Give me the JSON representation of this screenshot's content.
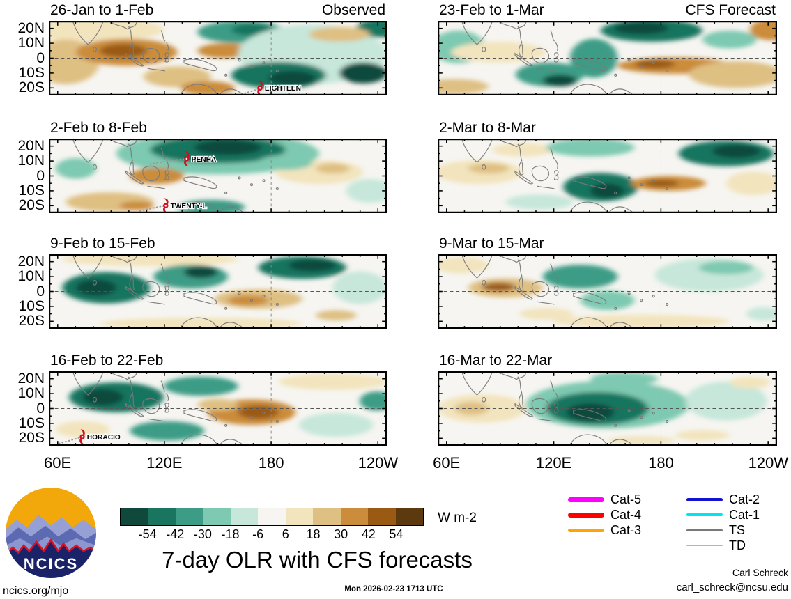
{
  "figure": {
    "title": "7-day OLR with CFS forecasts",
    "timestamp": "Mon 2026-02-23 1713 UTC",
    "credit_name": "Carl Schreck",
    "credit_email": "carl_schreck@ncsu.edu",
    "site": "ncics.org/mjo",
    "logo_text": "NCICS",
    "units_label": "W m-2"
  },
  "axes": {
    "lat_labels": [
      "20N",
      "10N",
      "0",
      "10S",
      "20S"
    ],
    "lat_fracs": [
      0.1,
      0.3,
      0.5,
      0.7,
      0.9
    ],
    "lon_labels": [
      "60E",
      "120E",
      "180",
      "120W"
    ],
    "lon_fracs": [
      0.026,
      0.342,
      0.658,
      0.974
    ]
  },
  "palette": {
    "m5": "#10493c",
    "m4": "#19755f",
    "m3": "#3d9c86",
    "m2": "#7ec9b1",
    "m1": "#c6e7da",
    "z": "#f6f5f1",
    "p1": "#f2e4bd",
    "p2": "#dfc083",
    "p3": "#cb8c3b",
    "p4": "#9a5a13",
    "p5": "#5d390f"
  },
  "colorbar": {
    "tick_values": [
      "-54",
      "-42",
      "-30",
      "-18",
      "-6",
      "6",
      "18",
      "30",
      "42",
      "54"
    ],
    "colors": [
      "#10493c",
      "#19755f",
      "#3d9c86",
      "#7ec9b1",
      "#c6e7da",
      "#f6f5f1",
      "#f2e4bd",
      "#dfc083",
      "#cb8c3b",
      "#9a5a13",
      "#5d390f"
    ]
  },
  "legend": {
    "col1": [
      {
        "label": "Cat-5",
        "color": "#ff00ff",
        "weight": 7
      },
      {
        "label": "Cat-4",
        "color": "#ff0000",
        "weight": 7
      },
      {
        "label": "Cat-3",
        "color": "#ffa500",
        "weight": 5
      }
    ],
    "col2": [
      {
        "label": "Cat-2",
        "color": "#1212d0",
        "weight": 5
      },
      {
        "label": "Cat-1",
        "color": "#00e5f2",
        "weight": 4
      },
      {
        "label": "TS",
        "color": "#787878",
        "weight": 3
      },
      {
        "label": "TD",
        "color": "#b5b5b5",
        "weight": 1.5
      }
    ]
  },
  "panels": [
    {
      "title": "26-Jan to 1-Feb",
      "corner": "Observed",
      "col": 0,
      "row": 0,
      "storms": [
        {
          "name": "EIGHTEEN",
          "fx": 0.625,
          "fy": 0.9,
          "track": [
            [
              0.58,
              0.97
            ],
            [
              0.61,
              0.93
            ]
          ]
        }
      ],
      "blobs": [
        [
          0.14,
          0.12,
          0.2,
          0.16,
          "p1"
        ],
        [
          0.05,
          0.55,
          0.1,
          0.3,
          "p2"
        ],
        [
          0.23,
          0.42,
          0.15,
          0.18,
          "p3"
        ],
        [
          0.22,
          0.4,
          0.07,
          0.09,
          "p4"
        ],
        [
          0.38,
          0.75,
          0.1,
          0.14,
          "p2"
        ],
        [
          0.52,
          0.4,
          0.08,
          0.1,
          "p3"
        ],
        [
          0.57,
          0.15,
          0.13,
          0.15,
          "m3"
        ],
        [
          0.6,
          0.12,
          0.06,
          0.08,
          "m4"
        ],
        [
          0.78,
          0.45,
          0.22,
          0.4,
          "m1"
        ],
        [
          0.68,
          0.73,
          0.14,
          0.18,
          "m4"
        ],
        [
          0.72,
          0.77,
          0.07,
          0.1,
          "m5"
        ],
        [
          0.93,
          0.7,
          0.07,
          0.14,
          "m5"
        ],
        [
          0.98,
          0.1,
          0.07,
          0.12,
          "m4"
        ],
        [
          0.86,
          0.18,
          0.09,
          0.1,
          "p2"
        ],
        [
          0.47,
          0.9,
          0.08,
          0.09,
          "p3"
        ]
      ]
    },
    {
      "title": "23-Feb to 1-Mar",
      "corner": "CFS Forecast",
      "col": 1,
      "row": 0,
      "storms": [],
      "blobs": [
        [
          0.06,
          0.35,
          0.08,
          0.22,
          "m2"
        ],
        [
          0.18,
          0.42,
          0.14,
          0.14,
          "p1"
        ],
        [
          0.05,
          0.88,
          0.1,
          0.1,
          "p2"
        ],
        [
          0.33,
          0.72,
          0.1,
          0.16,
          "m3"
        ],
        [
          0.36,
          0.8,
          0.05,
          0.08,
          "m5"
        ],
        [
          0.46,
          0.5,
          0.07,
          0.26,
          "m3"
        ],
        [
          0.63,
          0.13,
          0.15,
          0.15,
          "m4"
        ],
        [
          0.6,
          0.1,
          0.08,
          0.08,
          "m5"
        ],
        [
          0.7,
          0.6,
          0.17,
          0.11,
          "p3"
        ],
        [
          0.64,
          0.58,
          0.06,
          0.06,
          "p4"
        ],
        [
          0.88,
          0.72,
          0.14,
          0.18,
          "p2"
        ],
        [
          0.86,
          0.25,
          0.08,
          0.12,
          "m2"
        ],
        [
          0.98,
          0.12,
          0.06,
          0.14,
          "p3"
        ]
      ]
    },
    {
      "title": "2-Feb to 8-Feb",
      "corner": "",
      "col": 0,
      "row": 1,
      "storms": [
        {
          "name": "PENHA",
          "fx": 0.408,
          "fy": 0.27,
          "track": [
            [
              0.3,
              0.34
            ],
            [
              0.37,
              0.29
            ]
          ]
        },
        {
          "name": "TWENTY-L",
          "fx": 0.346,
          "fy": 0.9,
          "track": [
            [
              0.27,
              0.97
            ],
            [
              0.32,
              0.92
            ]
          ]
        }
      ],
      "blobs": [
        [
          0.5,
          0.2,
          0.3,
          0.28,
          "m2"
        ],
        [
          0.5,
          0.15,
          0.2,
          0.18,
          "m4"
        ],
        [
          0.53,
          0.12,
          0.1,
          0.1,
          "m5"
        ],
        [
          0.08,
          0.4,
          0.06,
          0.14,
          "m2"
        ],
        [
          0.32,
          0.5,
          0.08,
          0.11,
          "p3"
        ],
        [
          0.18,
          0.85,
          0.13,
          0.13,
          "p2"
        ],
        [
          0.26,
          0.9,
          0.05,
          0.06,
          "p3"
        ],
        [
          0.48,
          0.92,
          0.1,
          0.1,
          "m3"
        ],
        [
          0.8,
          0.45,
          0.13,
          0.16,
          "p1"
        ],
        [
          0.84,
          0.4,
          0.05,
          0.07,
          "p2"
        ],
        [
          0.95,
          0.7,
          0.07,
          0.16,
          "m1"
        ],
        [
          0.7,
          0.32,
          0.08,
          0.1,
          "m2"
        ]
      ]
    },
    {
      "title": "2-Mar to 8-Mar",
      "corner": "",
      "col": 1,
      "row": 1,
      "storms": [],
      "blobs": [
        [
          0.25,
          0.15,
          0.09,
          0.09,
          "p1"
        ],
        [
          0.12,
          0.45,
          0.13,
          0.16,
          "p1"
        ],
        [
          0.15,
          0.4,
          0.06,
          0.07,
          "p2"
        ],
        [
          0.45,
          0.12,
          0.13,
          0.12,
          "m2"
        ],
        [
          0.85,
          0.2,
          0.14,
          0.17,
          "m4"
        ],
        [
          0.88,
          0.17,
          0.07,
          0.09,
          "m5"
        ],
        [
          0.48,
          0.65,
          0.11,
          0.19,
          "m4"
        ],
        [
          0.5,
          0.7,
          0.05,
          0.1,
          "m5"
        ],
        [
          0.68,
          0.6,
          0.11,
          0.1,
          "p3"
        ],
        [
          0.66,
          0.6,
          0.05,
          0.05,
          "p4"
        ],
        [
          0.93,
          0.6,
          0.08,
          0.16,
          "p1"
        ],
        [
          0.3,
          0.85,
          0.1,
          0.1,
          "m1"
        ]
      ]
    },
    {
      "title": "9-Feb to 15-Feb",
      "corner": "",
      "col": 0,
      "row": 2,
      "storms": [],
      "blobs": [
        [
          0.3,
          0.07,
          0.26,
          0.09,
          "p1"
        ],
        [
          0.17,
          0.45,
          0.13,
          0.21,
          "m4"
        ],
        [
          0.14,
          0.45,
          0.06,
          0.11,
          "m5"
        ],
        [
          0.42,
          0.3,
          0.11,
          0.16,
          "m3"
        ],
        [
          0.45,
          0.24,
          0.05,
          0.08,
          "m5"
        ],
        [
          0.75,
          0.18,
          0.13,
          0.15,
          "m4"
        ],
        [
          0.78,
          0.15,
          0.07,
          0.08,
          "m5"
        ],
        [
          0.62,
          0.6,
          0.13,
          0.13,
          "p2"
        ],
        [
          0.59,
          0.62,
          0.06,
          0.07,
          "p3"
        ],
        [
          0.45,
          0.93,
          0.3,
          0.08,
          "p1"
        ],
        [
          0.92,
          0.45,
          0.08,
          0.22,
          "m1"
        ],
        [
          0.85,
          0.82,
          0.06,
          0.07,
          "p2"
        ]
      ]
    },
    {
      "title": "9-Mar to 15-Mar",
      "corner": "",
      "col": 1,
      "row": 2,
      "storms": [],
      "blobs": [
        [
          0.07,
          0.15,
          0.08,
          0.11,
          "p1"
        ],
        [
          0.2,
          0.45,
          0.11,
          0.13,
          "p2"
        ],
        [
          0.18,
          0.44,
          0.05,
          0.06,
          "p4"
        ],
        [
          0.42,
          0.3,
          0.11,
          0.16,
          "m3"
        ],
        [
          0.5,
          0.62,
          0.08,
          0.13,
          "m2"
        ],
        [
          0.8,
          0.28,
          0.16,
          0.22,
          "m1"
        ],
        [
          0.85,
          0.18,
          0.08,
          0.09,
          "m2"
        ],
        [
          0.6,
          0.9,
          0.26,
          0.09,
          "p1"
        ],
        [
          0.96,
          0.8,
          0.05,
          0.09,
          "m1"
        ],
        [
          0.32,
          0.8,
          0.08,
          0.08,
          "p1"
        ]
      ]
    },
    {
      "title": "16-Feb to 22-Feb",
      "corner": "",
      "col": 0,
      "row": 3,
      "storms": [
        {
          "name": "HORACIO",
          "fx": 0.099,
          "fy": 0.88,
          "track": [
            [
              0.03,
              0.97
            ],
            [
              0.07,
              0.92
            ]
          ]
        }
      ],
      "blobs": [
        [
          0.2,
          0.35,
          0.14,
          0.2,
          "m4"
        ],
        [
          0.16,
          0.35,
          0.06,
          0.11,
          "m5"
        ],
        [
          0.45,
          0.2,
          0.11,
          0.13,
          "m3"
        ],
        [
          0.6,
          0.55,
          0.13,
          0.17,
          "p3"
        ],
        [
          0.62,
          0.55,
          0.06,
          0.09,
          "p4"
        ],
        [
          0.84,
          0.14,
          0.16,
          0.11,
          "p1"
        ],
        [
          0.97,
          0.4,
          0.05,
          0.13,
          "m3"
        ],
        [
          0.85,
          0.72,
          0.11,
          0.16,
          "m1"
        ],
        [
          0.35,
          0.8,
          0.11,
          0.13,
          "m3"
        ],
        [
          0.1,
          0.78,
          0.08,
          0.11,
          "p1"
        ],
        [
          0.5,
          0.45,
          0.06,
          0.08,
          "p2"
        ]
      ]
    },
    {
      "title": "16-Mar to 22-Mar",
      "corner": "",
      "col": 1,
      "row": 3,
      "storms": [],
      "blobs": [
        [
          0.13,
          0.5,
          0.13,
          0.19,
          "p1"
        ],
        [
          0.1,
          0.5,
          0.05,
          0.09,
          "p2"
        ],
        [
          0.5,
          0.45,
          0.24,
          0.32,
          "m2"
        ],
        [
          0.47,
          0.5,
          0.15,
          0.22,
          "m4"
        ],
        [
          0.45,
          0.55,
          0.07,
          0.12,
          "m5"
        ],
        [
          0.55,
          0.1,
          0.1,
          0.09,
          "m2"
        ],
        [
          0.85,
          0.4,
          0.12,
          0.26,
          "m1"
        ],
        [
          0.92,
          0.15,
          0.06,
          0.08,
          "p1"
        ],
        [
          0.78,
          0.86,
          0.08,
          0.07,
          "p1"
        ],
        [
          0.6,
          0.93,
          0.1,
          0.06,
          "p1"
        ]
      ]
    }
  ],
  "chart_data": {
    "type": "heatmap",
    "title": "7-day OLR with CFS forecasts",
    "units": "W m-2",
    "issued": "Mon 2026-02-23 1713 UTC",
    "columns": [
      "Observed",
      "CFS Forecast"
    ],
    "x_tick_labels": [
      "60E",
      "120E",
      "180",
      "120W"
    ],
    "y_tick_labels": [
      "20N",
      "10N",
      "0",
      "10S",
      "20S"
    ],
    "colorbar_levels": [
      -54,
      -42,
      -30,
      -18,
      -6,
      6,
      18,
      30,
      42,
      54
    ],
    "colorbar_colors": [
      "#10493c",
      "#19755f",
      "#3d9c86",
      "#7ec9b1",
      "#c6e7da",
      "#f6f5f1",
      "#f2e4bd",
      "#dfc083",
      "#cb8c3b",
      "#9a5a13",
      "#5d390f"
    ],
    "panels": [
      {
        "period": "26-Jan to 1-Feb",
        "column": "Observed",
        "storms": [
          "EIGHTEEN"
        ]
      },
      {
        "period": "23-Feb to 1-Mar",
        "column": "CFS Forecast",
        "storms": []
      },
      {
        "period": "2-Feb to 8-Feb",
        "column": "Observed",
        "storms": [
          "PENHA",
          "TWENTY-L"
        ]
      },
      {
        "period": "2-Mar to 8-Mar",
        "column": "CFS Forecast",
        "storms": []
      },
      {
        "period": "9-Feb to 15-Feb",
        "column": "Observed",
        "storms": []
      },
      {
        "period": "9-Mar to 15-Mar",
        "column": "CFS Forecast",
        "storms": []
      },
      {
        "period": "16-Feb to 22-Feb",
        "column": "Observed",
        "storms": [
          "HORACIO"
        ]
      },
      {
        "period": "16-Mar to 22-Mar",
        "column": "CFS Forecast",
        "storms": []
      }
    ],
    "storm_legend": [
      {
        "label": "Cat-5",
        "color": "#ff00ff"
      },
      {
        "label": "Cat-4",
        "color": "#ff0000"
      },
      {
        "label": "Cat-3",
        "color": "#ffa500"
      },
      {
        "label": "Cat-2",
        "color": "#1212d0"
      },
      {
        "label": "Cat-1",
        "color": "#00e5f2"
      },
      {
        "label": "TS",
        "color": "#787878"
      },
      {
        "label": "TD",
        "color": "#b5b5b5"
      }
    ]
  }
}
